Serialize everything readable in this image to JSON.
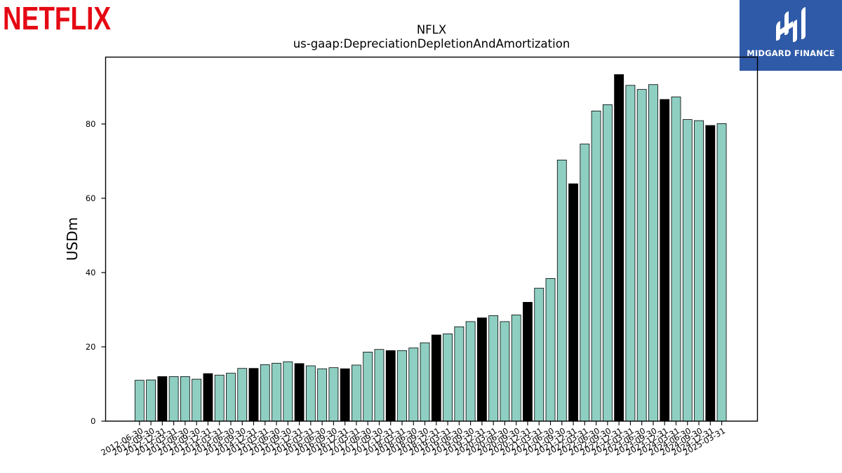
{
  "brand": {
    "logo_text": "NETFLIX",
    "logo_color": "#e50914"
  },
  "badge": {
    "text": "MIDGARD FINANCE",
    "bg_color": "#2f5aa8",
    "icon": "midgard-logo-icon"
  },
  "chart_data": {
    "type": "bar",
    "title": "NFLX",
    "subtitle": "us-gaap:DepreciationDepletionAndAmortization",
    "xlabel": "",
    "ylabel": "USDm",
    "ylim": [
      0,
      98
    ],
    "yticks": [
      0,
      20,
      40,
      60,
      80
    ],
    "grid": false,
    "colors": {
      "quarter": "#8ecfc2",
      "fiscal_year_end": "#000000",
      "edge": "#000000"
    },
    "categories": [
      "2012-06-30",
      "2012-09-30",
      "2012-12-31",
      "2013-03-31",
      "2013-06-30",
      "2013-09-30",
      "2013-12-31",
      "2014-03-31",
      "2014-06-30",
      "2014-09-30",
      "2014-12-31",
      "2015-03-31",
      "2015-06-30",
      "2015-09-30",
      "2015-12-31",
      "2016-03-31",
      "2016-06-30",
      "2016-09-30",
      "2016-12-31",
      "2017-03-31",
      "2017-06-30",
      "2017-09-30",
      "2017-12-31",
      "2018-03-31",
      "2018-06-30",
      "2018-09-30",
      "2018-12-31",
      "2019-03-31",
      "2019-06-30",
      "2019-09-30",
      "2019-12-31",
      "2020-03-31",
      "2020-06-30",
      "2020-09-30",
      "2020-12-31",
      "2021-03-31",
      "2021-06-30",
      "2021-09-30",
      "2021-12-31",
      "2022-03-31",
      "2022-06-30",
      "2022-09-30",
      "2022-12-31",
      "2023-03-31",
      "2023-06-30",
      "2023-09-30",
      "2023-12-31",
      "2024-03-31",
      "2024-06-30",
      "2024-09-30",
      "2024-12-31",
      "2025-03-31"
    ],
    "values": [
      11.0,
      11.1,
      12.0,
      12.0,
      12.0,
      11.3,
      12.8,
      12.4,
      12.9,
      14.2,
      14.2,
      15.2,
      15.6,
      16.0,
      15.5,
      14.9,
      14.1,
      14.4,
      14.1,
      15.1,
      18.6,
      19.3,
      19.0,
      19.0,
      19.7,
      21.1,
      23.2,
      23.5,
      25.4,
      26.8,
      27.8,
      28.4,
      26.8,
      28.6,
      32.0,
      35.8,
      38.4,
      70.3,
      63.9,
      74.6,
      83.5,
      85.2,
      93.3,
      90.4,
      89.3,
      90.6,
      86.6,
      87.3,
      81.2,
      80.9,
      79.6,
      80.1
    ],
    "fiscal_year_end": [
      false,
      false,
      true,
      false,
      false,
      false,
      true,
      false,
      false,
      false,
      true,
      false,
      false,
      false,
      true,
      false,
      false,
      false,
      true,
      false,
      false,
      false,
      true,
      false,
      false,
      false,
      true,
      false,
      false,
      false,
      true,
      false,
      false,
      false,
      true,
      false,
      false,
      false,
      true,
      false,
      false,
      false,
      true,
      false,
      false,
      false,
      true,
      false,
      false,
      false,
      true,
      false
    ]
  }
}
